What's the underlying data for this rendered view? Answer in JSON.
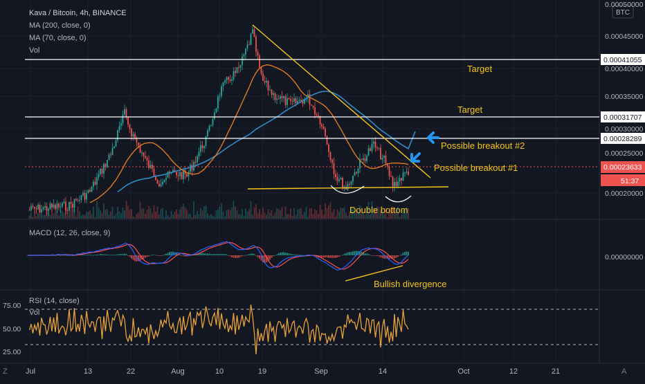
{
  "header": {
    "title": "Kava / Bitcoin, 4h, BINANCE",
    "ma200": "MA (200, close, 0)",
    "ma70": "MA (70, close, 0)",
    "vol": "Vol",
    "currency": "BTC"
  },
  "macd": {
    "label": "MACD (12, 26, close, 9)",
    "zero_label": "0.00000000"
  },
  "rsi": {
    "label": "RSI (14, close)",
    "vol_label": "Vol",
    "ticks": [
      "75.00",
      "50.00",
      "25.00"
    ]
  },
  "footer": {
    "left_icon": "Z",
    "right_icon": "A"
  },
  "colors": {
    "background": "#131722",
    "grid": "#1e222d",
    "text": "#b2b5be",
    "annotation": "#f5c518",
    "arrow": "#2196f3",
    "ma200": "#2e8bc7",
    "ma70": "#e07b1e",
    "macd_line": "#2962ff",
    "signal_line": "#ff5252",
    "rsi_line": "#e8a33a",
    "price_tag": "#ef5350",
    "up": "#26a69a",
    "down": "#ef5350"
  },
  "chart_data": {
    "type": "candlestick",
    "price_axis": {
      "ticks": [
        "0.00050000",
        "0.00045000",
        "0.00040000",
        "0.00035000",
        "0.00030000",
        "0.00025000",
        "0.00020000"
      ]
    },
    "time_axis": {
      "ticks": [
        "Jul",
        "13",
        "22",
        "Aug",
        "10",
        "19",
        "Sep",
        "14",
        "Oct",
        "12",
        "21"
      ]
    },
    "levels": [
      {
        "name": "Target",
        "price_label": "0.00041055",
        "value": 0.00041055
      },
      {
        "name": "Target",
        "price_label": "0.00031707",
        "value": 0.00031707
      },
      {
        "name": "Possible breakout #2",
        "price_label": "0.00028289",
        "value": 0.00028289
      }
    ],
    "current_price": {
      "label": "0.00023633",
      "value": 0.00023633,
      "countdown": "51:37"
    },
    "annotations": [
      "Target",
      "Target",
      "Possible breakout #2",
      "Possible breakout #1",
      "Double bottom",
      "Bullish divergence"
    ],
    "price_path": [
      [
        "Jul",
        0.000175
      ],
      [
        "Jul 8",
        0.000182
      ],
      [
        "Jul 13",
        0.000205
      ],
      [
        "Jul 16",
        0.000265
      ],
      [
        "Jul 19",
        0.00033
      ],
      [
        "Jul 22",
        0.0003
      ],
      [
        "Jul 25",
        0.000255
      ],
      [
        "Jul 28",
        0.00022
      ],
      [
        "Aug 1",
        0.000235
      ],
      [
        "Aug 4",
        0.00023
      ],
      [
        "Aug 7",
        0.000295
      ],
      [
        "Aug 10",
        0.000365
      ],
      [
        "Aug 12",
        0.000385
      ],
      [
        "Aug 14",
        0.0004
      ],
      [
        "Aug 16",
        0.00046
      ],
      [
        "Aug 19",
        0.000385
      ],
      [
        "Aug 22",
        0.00036
      ],
      [
        "Aug 26",
        0.000345
      ],
      [
        "Aug 30",
        0.000355
      ],
      [
        "Sep 1",
        0.000315
      ],
      [
        "Sep 3",
        0.00023
      ],
      [
        "Sep 6",
        0.00021
      ],
      [
        "Sep 9",
        0.00025
      ],
      [
        "Sep 12",
        0.00028
      ],
      [
        "Sep 14",
        0.000255
      ],
      [
        "Sep 16",
        0.000215
      ],
      [
        "Sep 18",
        0.00024
      ]
    ]
  }
}
